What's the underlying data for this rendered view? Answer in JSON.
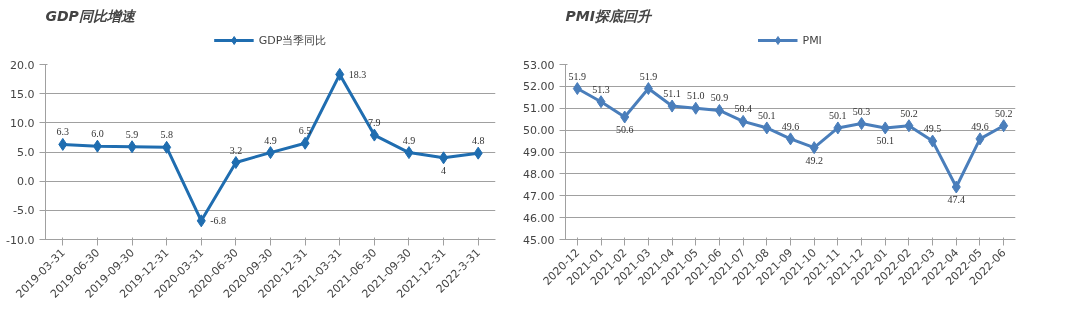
{
  "chart_data": [
    {
      "type": "line",
      "title": "GDP同比增速",
      "categories": [
        "2019-03-31",
        "2019-06-30",
        "2019-09-30",
        "2019-12-31",
        "2020-03-31",
        "2020-06-30",
        "2020-09-30",
        "2020-12-31",
        "2021-03-31",
        "2021-06-30",
        "2021-09-30",
        "2021-12-31",
        "2022-3-31"
      ],
      "series": [
        {
          "name": "GDP当季同比",
          "color": "#1f6db0",
          "values": [
            6.3,
            6.0,
            5.9,
            5.8,
            -6.8,
            3.2,
            4.9,
            6.5,
            18.3,
            7.9,
            4.9,
            4,
            4.8
          ],
          "value_labels": [
            "6.3",
            "6.0",
            "5.9",
            "5.8",
            "-6.8",
            "3.2",
            "4.9",
            "6.5",
            "18.3",
            "7.9",
            "4.9",
            "4",
            "4.8"
          ]
        }
      ],
      "ylim": [
        -10,
        20
      ],
      "yticks": [
        {
          "value": -10,
          "label": "-10.0"
        },
        {
          "value": -5,
          "label": "-5.0"
        },
        {
          "value": 0,
          "label": "0.0"
        },
        {
          "value": 5,
          "label": "5.0"
        },
        {
          "value": 10,
          "label": "10.0"
        },
        {
          "value": 15,
          "label": "15.0"
        },
        {
          "value": 20,
          "label": "20.0"
        }
      ],
      "grid": "y",
      "legend": "top",
      "marker": "diamond",
      "line_style": "solid"
    },
    {
      "type": "line",
      "title": "PMI探底回升",
      "categories": [
        "2020-12",
        "2021-01",
        "2021-02",
        "2021-03",
        "2021-04",
        "2021-05",
        "2021-06",
        "2021-07",
        "2021-08",
        "2021-09",
        "2021-10",
        "2021-11",
        "2021-12",
        "2022-01",
        "2022-02",
        "2022-03",
        "2022-04",
        "2022-05",
        "2022-06"
      ],
      "series": [
        {
          "name": "PMI",
          "color": "#4a7ebb",
          "values": [
            51.9,
            51.3,
            50.6,
            51.9,
            51.1,
            51.0,
            50.9,
            50.4,
            50.1,
            49.6,
            49.2,
            50.1,
            50.3,
            50.1,
            50.2,
            49.5,
            47.4,
            49.6,
            50.2
          ],
          "value_labels": [
            "51.9",
            "51.3",
            "50.6",
            "51.9",
            "51.1",
            "51.0",
            "50.9",
            "50.4",
            "50.1",
            "49.6",
            "49.2",
            "50.1",
            "50.3",
            "50.1",
            "50.2",
            "49.5",
            "47.4",
            "49.6",
            "50.2"
          ]
        }
      ],
      "ylim": [
        45,
        53
      ],
      "yticks": [
        {
          "value": 45,
          "label": "45.00"
        },
        {
          "value": 46,
          "label": "46.00"
        },
        {
          "value": 47,
          "label": "47.00"
        },
        {
          "value": 48,
          "label": "48.00"
        },
        {
          "value": 49,
          "label": "49.00"
        },
        {
          "value": 50,
          "label": "50.00"
        },
        {
          "value": 51,
          "label": "51.00"
        },
        {
          "value": 52,
          "label": "52.00"
        },
        {
          "value": 53,
          "label": "53.00"
        }
      ],
      "grid": "y",
      "legend": "top",
      "marker": "diamond",
      "line_style": "solid"
    }
  ]
}
